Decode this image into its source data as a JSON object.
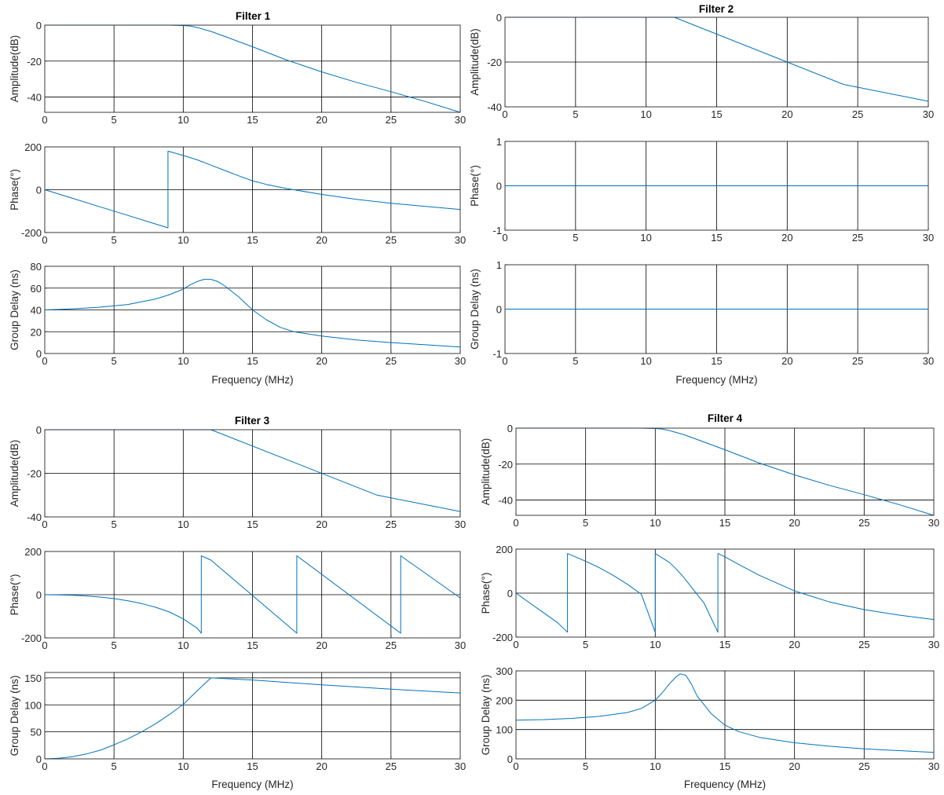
{
  "colors": {
    "line": "#0072bd",
    "grid": "#000000",
    "axes": "#262626",
    "background": "#ffffff"
  },
  "chart_data": [
    {
      "title": "Filter 1",
      "xlabel": "Frequency (MHz)",
      "subplots": [
        {
          "type": "line",
          "ylabel": "Amplitude(dB)",
          "xlim": [
            0,
            30
          ],
          "ylim": [
            -48.5,
            0
          ],
          "xticks": [
            0,
            5,
            10,
            15,
            20,
            25,
            30
          ],
          "yticks": [
            -40,
            -20,
            0
          ],
          "grid": true,
          "series": [
            {
              "x": [
                0,
                8,
                9,
                10,
                10.5,
                11,
                12,
                13,
                15,
                17.5,
                20,
                22.5,
                25,
                27.5,
                30
              ],
              "y": [
                0,
                0,
                0,
                -0.2,
                -0.5,
                -1.3,
                -3.5,
                -6.3,
                -12,
                -19.5,
                -26,
                -31.8,
                -37,
                -42.5,
                -48.5
              ]
            }
          ]
        },
        {
          "type": "line",
          "ylabel": "Phase(°)",
          "xlim": [
            0,
            30
          ],
          "ylim": [
            -200,
            200
          ],
          "xticks": [
            0,
            5,
            10,
            15,
            20,
            25,
            30
          ],
          "yticks": [
            -200,
            0,
            200
          ],
          "grid": true,
          "series": [
            {
              "x": [
                0,
                2,
                4,
                6,
                8,
                8.9,
                8.9,
                10,
                11,
                12,
                13,
                14,
                15,
                16,
                17.5,
                20,
                22.5,
                25,
                27.5,
                30
              ],
              "y": [
                0,
                -40,
                -80,
                -120,
                -160,
                -178,
                180,
                160,
                140,
                115,
                90,
                65,
                42,
                25,
                5,
                -22,
                -45,
                -63,
                -78,
                -92
              ]
            }
          ]
        },
        {
          "type": "line",
          "ylabel": "Group Delay (ns)",
          "xlim": [
            0,
            30
          ],
          "ylim": [
            0,
            80
          ],
          "xticks": [
            0,
            5,
            10,
            15,
            20,
            25,
            30
          ],
          "yticks": [
            0,
            20,
            40,
            60,
            80
          ],
          "grid": true,
          "series": [
            {
              "x": [
                0,
                2,
                4,
                6,
                8,
                9,
                10,
                10.5,
                11,
                11.5,
                12,
                12.5,
                13,
                14,
                15,
                16,
                17,
                18,
                20,
                22.5,
                25,
                27.5,
                30
              ],
              "y": [
                40,
                41,
                42.5,
                45,
                50,
                54,
                59,
                63,
                66,
                68,
                68,
                66,
                62,
                52,
                40,
                31,
                24,
                20,
                16,
                12.5,
                10,
                8,
                6
              ]
            }
          ]
        }
      ]
    },
    {
      "title": "Filter 2",
      "xlabel": "Frequency (MHz)",
      "subplots": [
        {
          "type": "line",
          "ylabel": "Amplitude(dB)",
          "xlim": [
            0,
            30
          ],
          "ylim": [
            -40,
            0
          ],
          "xticks": [
            0,
            5,
            10,
            15,
            20,
            25,
            30
          ],
          "yticks": [
            -40,
            -20,
            0
          ],
          "grid": true,
          "series": [
            {
              "x": [
                0,
                12,
                24,
                30
              ],
              "y": [
                0,
                0,
                -30,
                -37.5
              ]
            }
          ]
        },
        {
          "type": "line",
          "ylabel": "Phase(°)",
          "xlim": [
            0,
            30
          ],
          "ylim": [
            -1,
            1
          ],
          "xticks": [
            0,
            5,
            10,
            15,
            20,
            25,
            30
          ],
          "yticks": [
            -1,
            0,
            1
          ],
          "grid": true,
          "series": [
            {
              "x": [
                0,
                30
              ],
              "y": [
                0,
                0
              ]
            }
          ]
        },
        {
          "type": "line",
          "ylabel": "Group Delay (ns)",
          "xlim": [
            0,
            30
          ],
          "ylim": [
            -1,
            1
          ],
          "xticks": [
            0,
            5,
            10,
            15,
            20,
            25,
            30
          ],
          "yticks": [
            -1,
            0,
            1
          ],
          "grid": true,
          "series": [
            {
              "x": [
                0,
                30
              ],
              "y": [
                0,
                0
              ]
            }
          ]
        }
      ]
    },
    {
      "title": "Filter 3",
      "xlabel": "Frequency (MHz)",
      "subplots": [
        {
          "type": "line",
          "ylabel": "Amplitude(dB)",
          "xlim": [
            0,
            30
          ],
          "ylim": [
            -40,
            0
          ],
          "xticks": [
            0,
            5,
            10,
            15,
            20,
            25,
            30
          ],
          "yticks": [
            -40,
            -20,
            0
          ],
          "grid": true,
          "series": [
            {
              "x": [
                0,
                12,
                24,
                30
              ],
              "y": [
                0,
                0,
                -30,
                -37.5
              ]
            }
          ]
        },
        {
          "type": "line",
          "ylabel": "Phase(°)",
          "xlim": [
            0,
            30
          ],
          "ylim": [
            -200,
            200
          ],
          "xticks": [
            0,
            5,
            10,
            15,
            20,
            25,
            30
          ],
          "yticks": [
            -200,
            0,
            200
          ],
          "grid": true,
          "series": [
            {
              "x": [
                0,
                1,
                2,
                3,
                4,
                5,
                6,
                7,
                8,
                9,
                10,
                11,
                11.3,
                11.3,
                12,
                18.2,
                18.2,
                25.7,
                25.7,
                30
              ],
              "y": [
                0,
                -1,
                -3,
                -6,
                -11,
                -18,
                -28,
                -41,
                -58,
                -80,
                -112,
                -155,
                -178,
                180,
                160,
                -178,
                180,
                -178,
                180,
                -15
              ]
            }
          ]
        },
        {
          "type": "line",
          "ylabel": "Group Delay (ns)",
          "xlim": [
            0,
            30
          ],
          "ylim": [
            0,
            160
          ],
          "xticks": [
            0,
            5,
            10,
            15,
            20,
            25,
            30
          ],
          "yticks": [
            0,
            50,
            100,
            150
          ],
          "grid": true,
          "series": [
            {
              "x": [
                0,
                1,
                2,
                3,
                4,
                5,
                6,
                7,
                8,
                9,
                10,
                11,
                12,
                15,
                20,
                25,
                30
              ],
              "y": [
                0,
                1,
                4,
                9,
                16,
                26,
                37,
                50,
                65,
                82,
                101,
                126,
                150,
                146,
                137,
                129,
                122
              ]
            }
          ]
        }
      ]
    },
    {
      "title": "Filter 4",
      "xlabel": "Frequency (MHz)",
      "subplots": [
        {
          "type": "line",
          "ylabel": "Amplitude(dB)",
          "xlim": [
            0,
            30
          ],
          "ylim": [
            -48.5,
            0
          ],
          "xticks": [
            0,
            5,
            10,
            15,
            20,
            25,
            30
          ],
          "yticks": [
            -40,
            -20,
            0
          ],
          "grid": true,
          "series": [
            {
              "x": [
                0,
                8,
                9,
                10,
                10.5,
                11,
                12,
                13,
                15,
                17.5,
                20,
                22.5,
                25,
                27.5,
                30
              ],
              "y": [
                0,
                0,
                0,
                -0.2,
                -0.5,
                -1.3,
                -3.5,
                -6.3,
                -12,
                -19.5,
                -26,
                -31.8,
                -37,
                -42.5,
                -48.5
              ]
            }
          ]
        },
        {
          "type": "line",
          "ylabel": "Phase(°)",
          "xlim": [
            0,
            30
          ],
          "ylim": [
            -200,
            200
          ],
          "xticks": [
            0,
            5,
            10,
            15,
            20,
            25,
            30
          ],
          "yticks": [
            -200,
            0,
            200
          ],
          "grid": true,
          "series": [
            {
              "x": [
                0,
                1,
                2,
                3,
                3.7,
                3.7,
                5,
                6,
                7,
                8,
                9,
                10,
                10,
                10.5,
                11,
                11.5,
                12,
                12.5,
                13,
                13.5,
                14.5,
                14.5,
                15,
                16,
                17.5,
                20,
                22.5,
                25,
                27.5,
                30
              ],
              "y": [
                0,
                -45,
                -90,
                -135,
                -178,
                180,
                145,
                115,
                80,
                40,
                -5,
                -178,
                180,
                160,
                140,
                110,
                75,
                35,
                -5,
                -45,
                -178,
                180,
                165,
                130,
                80,
                10,
                -40,
                -75,
                -100,
                -120
              ]
            }
          ]
        },
        {
          "type": "line",
          "ylabel": "Group Delay (ns)",
          "xlim": [
            0,
            30
          ],
          "ylim": [
            0,
            300
          ],
          "xticks": [
            0,
            5,
            10,
            15,
            20,
            25,
            30
          ],
          "yticks": [
            0,
            100,
            200,
            300
          ],
          "grid": true,
          "series": [
            {
              "x": [
                0,
                2,
                4,
                6,
                8,
                9,
                10,
                10.5,
                11,
                11.5,
                11.8,
                12.2,
                12.6,
                13,
                14,
                15,
                16,
                17.5,
                20,
                22.5,
                25,
                27.5,
                30
              ],
              "y": [
                132,
                134,
                138,
                145,
                158,
                172,
                200,
                225,
                255,
                280,
                290,
                285,
                255,
                215,
                155,
                115,
                93,
                73,
                55,
                43,
                34,
                28,
                22
              ]
            }
          ]
        }
      ]
    }
  ]
}
